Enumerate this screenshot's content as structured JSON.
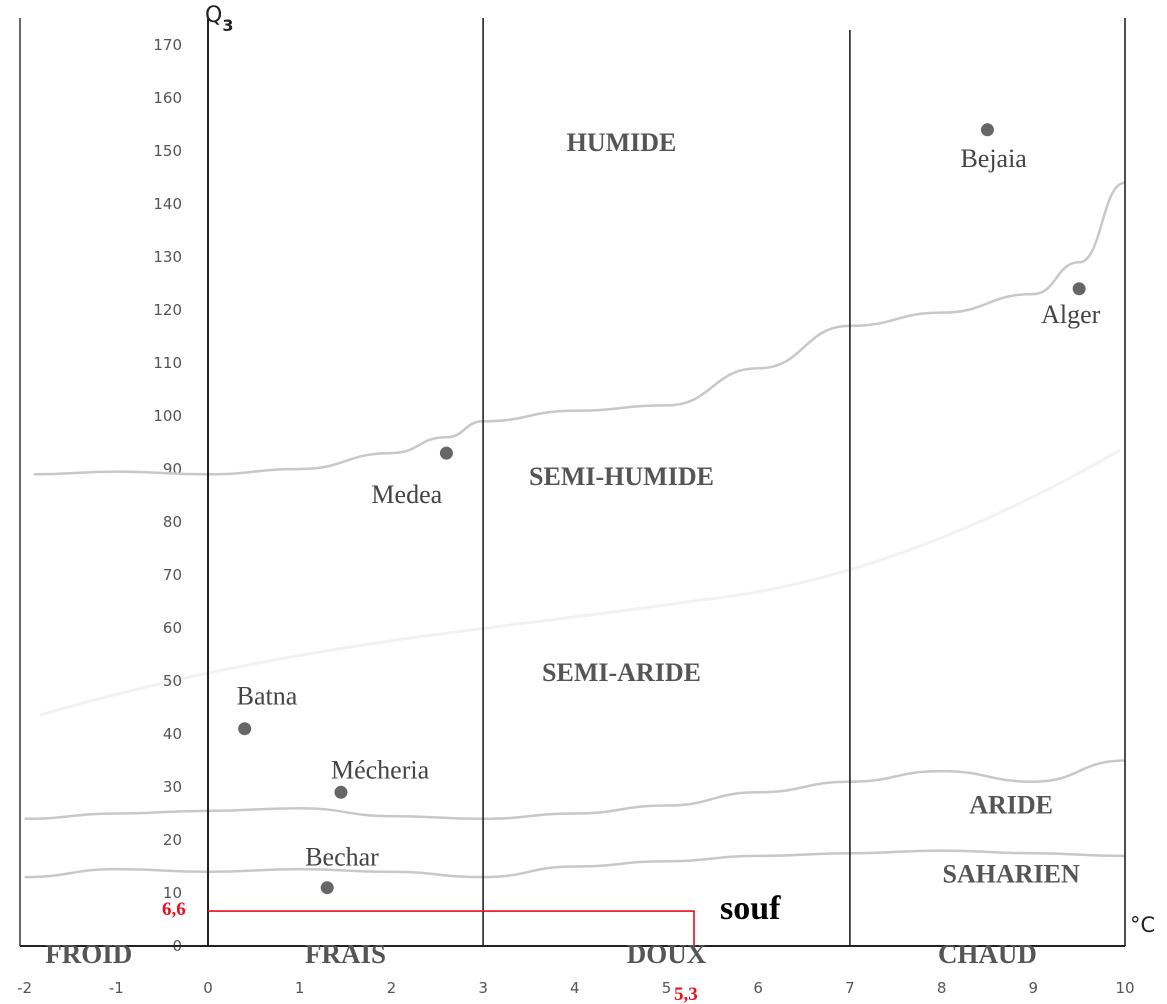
{
  "chart_data": {
    "type": "scatter",
    "title": "",
    "y_axis": {
      "label": "Q",
      "label_subscript": "3",
      "range": [
        0,
        170
      ],
      "ticks": [
        "0",
        "10",
        "20",
        "30",
        "40",
        "50",
        "60",
        "70",
        "80",
        "90",
        "100",
        "110",
        "120",
        "130",
        "140",
        "150",
        "160",
        "170"
      ]
    },
    "x_axis": {
      "unit": "°C",
      "range": [
        -2,
        10
      ],
      "ticks": [
        "-2",
        "-1",
        "0",
        "1",
        "2",
        "3",
        "4",
        "5",
        "6",
        "7",
        "8",
        "9",
        "10"
      ]
    },
    "zone_boundaries_x": [
      0,
      3,
      7,
      10
    ],
    "temperature_zones": [
      {
        "name": "FROID",
        "x": -1.3
      },
      {
        "name": "FRAIS",
        "x": 1.5
      },
      {
        "name": "DOUX",
        "x": 5
      },
      {
        "name": "CHAUD",
        "x": 8.5
      }
    ],
    "bioclimatic_zones": [
      {
        "name": "HUMIDE",
        "x": 5,
        "y": 150
      },
      {
        "name": "SEMI-HUMIDE",
        "x": 5,
        "y": 87
      },
      {
        "name": "SEMI-ARIDE",
        "x": 5,
        "y": 50
      },
      {
        "name": "ARIDE",
        "x": 8.9,
        "y": 25
      },
      {
        "name": "SAHARIEN",
        "x": 8.9,
        "y": 12
      }
    ],
    "boundary_curves": [
      {
        "points": [
          [
            -1.9,
            89
          ],
          [
            -1,
            89.5
          ],
          [
            0,
            89
          ],
          [
            1,
            90
          ],
          [
            2,
            93
          ],
          [
            2.6,
            96
          ],
          [
            3,
            99
          ],
          [
            4,
            101
          ],
          [
            5,
            102
          ],
          [
            6,
            109
          ],
          [
            7,
            117
          ],
          [
            8,
            119.5
          ],
          [
            9,
            123
          ],
          [
            9.5,
            129
          ],
          [
            10,
            144
          ]
        ]
      },
      {
        "points": [
          [
            -2,
            24
          ],
          [
            -1,
            25
          ],
          [
            0,
            25.5
          ],
          [
            1,
            26
          ],
          [
            2,
            24.5
          ],
          [
            3,
            24
          ],
          [
            4,
            25
          ],
          [
            5,
            26.5
          ],
          [
            6,
            29
          ],
          [
            7,
            31
          ],
          [
            8,
            33
          ],
          [
            9,
            31
          ],
          [
            10,
            35
          ]
        ]
      },
      {
        "points": [
          [
            -2,
            13
          ],
          [
            -1,
            14.5
          ],
          [
            0,
            14
          ],
          [
            1,
            14.5
          ],
          [
            2,
            14
          ],
          [
            3,
            13
          ],
          [
            4,
            15
          ],
          [
            5,
            16
          ],
          [
            6,
            17
          ],
          [
            7,
            17.5
          ],
          [
            8,
            18
          ],
          [
            9,
            17.5
          ],
          [
            10,
            17
          ]
        ]
      }
    ],
    "stations": [
      {
        "name": "Bejaia",
        "x": 8.5,
        "y": 154
      },
      {
        "name": "Alger",
        "x": 9.5,
        "y": 124
      },
      {
        "name": "Medea",
        "x": 2.6,
        "y": 93
      },
      {
        "name": "Batna",
        "x": 0.4,
        "y": 41
      },
      {
        "name": "Mécheria",
        "x": 1.45,
        "y": 29
      },
      {
        "name": "Bechar",
        "x": 1.3,
        "y": 11
      }
    ],
    "highlighted_point": {
      "name": "souf",
      "x": 5.3,
      "y": 6.6,
      "x_label": "5,3",
      "y_label": "6,6",
      "color": "#e8101a"
    }
  }
}
